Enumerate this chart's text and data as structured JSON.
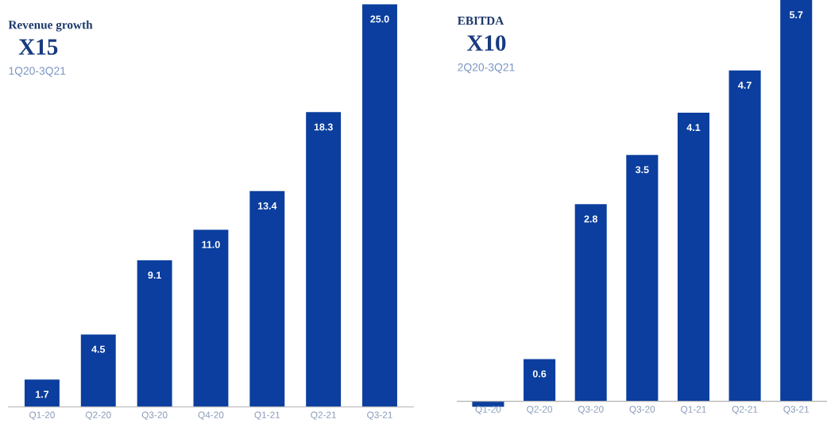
{
  "chart_data": [
    {
      "type": "bar",
      "title": "Revenue growth",
      "subtitle": "X15",
      "annotations": [
        "1Q20-3Q21"
      ],
      "categories": [
        "Q1-20",
        "Q2-20",
        "Q3-20",
        "Q4-20",
        "Q1-21",
        "Q2-21",
        "Q3-21"
      ],
      "values": [
        1.7,
        4.5,
        9.1,
        11.0,
        13.4,
        18.3,
        25.0
      ],
      "value_labels": [
        "1.7",
        "4.5",
        "9.1",
        "11.0",
        "13.4",
        "18.3",
        "25.0"
      ],
      "color": "#0b3e9e",
      "grid": false,
      "legend": false,
      "tick_labels": "x"
    },
    {
      "type": "bar",
      "title": "EBITDA",
      "subtitle": "X10",
      "annotations": [
        "2Q20-3Q21"
      ],
      "categories": [
        "Q1-20",
        "Q2-20",
        "Q3-20",
        "Q3-20",
        "Q1-21",
        "Q2-21",
        "Q3-21"
      ],
      "values": [
        -0.08,
        0.6,
        2.8,
        3.5,
        4.1,
        4.7,
        5.7
      ],
      "value_labels": [
        null,
        "0.6",
        "2.8",
        "3.5",
        "4.1",
        "4.7",
        "5.7"
      ],
      "color": "#0b3e9e",
      "grid": false,
      "legend": false,
      "tick_labels": "x"
    }
  ]
}
